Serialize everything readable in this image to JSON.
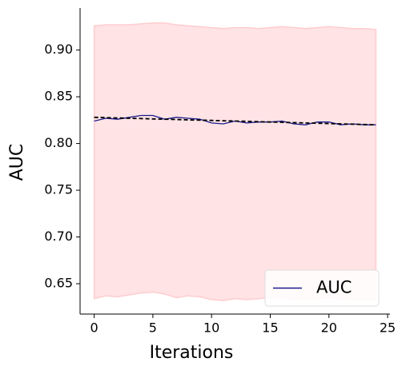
{
  "chart_data": {
    "type": "line",
    "xlabel": "Iterations",
    "ylabel": "AUC",
    "x": [
      0,
      1,
      2,
      3,
      4,
      5,
      6,
      7,
      8,
      9,
      10,
      11,
      12,
      13,
      14,
      15,
      16,
      17,
      18,
      19,
      20,
      21,
      22,
      23,
      24
    ],
    "series": [
      {
        "name": "AUC",
        "color": "#1a1a8c",
        "values": [
          0.824,
          0.827,
          0.826,
          0.828,
          0.83,
          0.83,
          0.826,
          0.828,
          0.827,
          0.826,
          0.822,
          0.821,
          0.824,
          0.822,
          0.823,
          0.823,
          0.824,
          0.821,
          0.82,
          0.823,
          0.823,
          0.82,
          0.821,
          0.82,
          0.82
        ]
      }
    ],
    "trend": {
      "color": "#000000",
      "values": [
        0.828,
        0.8277,
        0.8273,
        0.827,
        0.8267,
        0.8263,
        0.826,
        0.8257,
        0.8253,
        0.825,
        0.8247,
        0.8243,
        0.824,
        0.8237,
        0.8233,
        0.823,
        0.8227,
        0.8223,
        0.822,
        0.8217,
        0.8213,
        0.821,
        0.8207,
        0.8203,
        0.82
      ]
    },
    "band": {
      "color": "#ffcccf",
      "upper": [
        0.926,
        0.927,
        0.927,
        0.927,
        0.928,
        0.929,
        0.929,
        0.927,
        0.926,
        0.925,
        0.924,
        0.923,
        0.924,
        0.924,
        0.923,
        0.924,
        0.925,
        0.924,
        0.923,
        0.924,
        0.925,
        0.924,
        0.923,
        0.923,
        0.922
      ],
      "lower": [
        0.634,
        0.637,
        0.636,
        0.638,
        0.64,
        0.641,
        0.639,
        0.635,
        0.637,
        0.636,
        0.633,
        0.632,
        0.634,
        0.633,
        0.634,
        0.635,
        0.635,
        0.634,
        0.633,
        0.634,
        0.635,
        0.634,
        0.633,
        0.633,
        0.633
      ]
    },
    "xlim": [
      -1.2,
      25.2
    ],
    "ylim": [
      0.6175,
      0.945
    ],
    "xticks": [
      0,
      5,
      10,
      15,
      20,
      25
    ],
    "yticks": [
      {
        "value": 0.9,
        "label": "0.90"
      },
      0.85,
      {
        "value": 0.8,
        "label": "0.80"
      },
      0.75,
      {
        "value": 0.7,
        "label": "0.70"
      },
      0.65
    ],
    "legend": "lower right"
  }
}
